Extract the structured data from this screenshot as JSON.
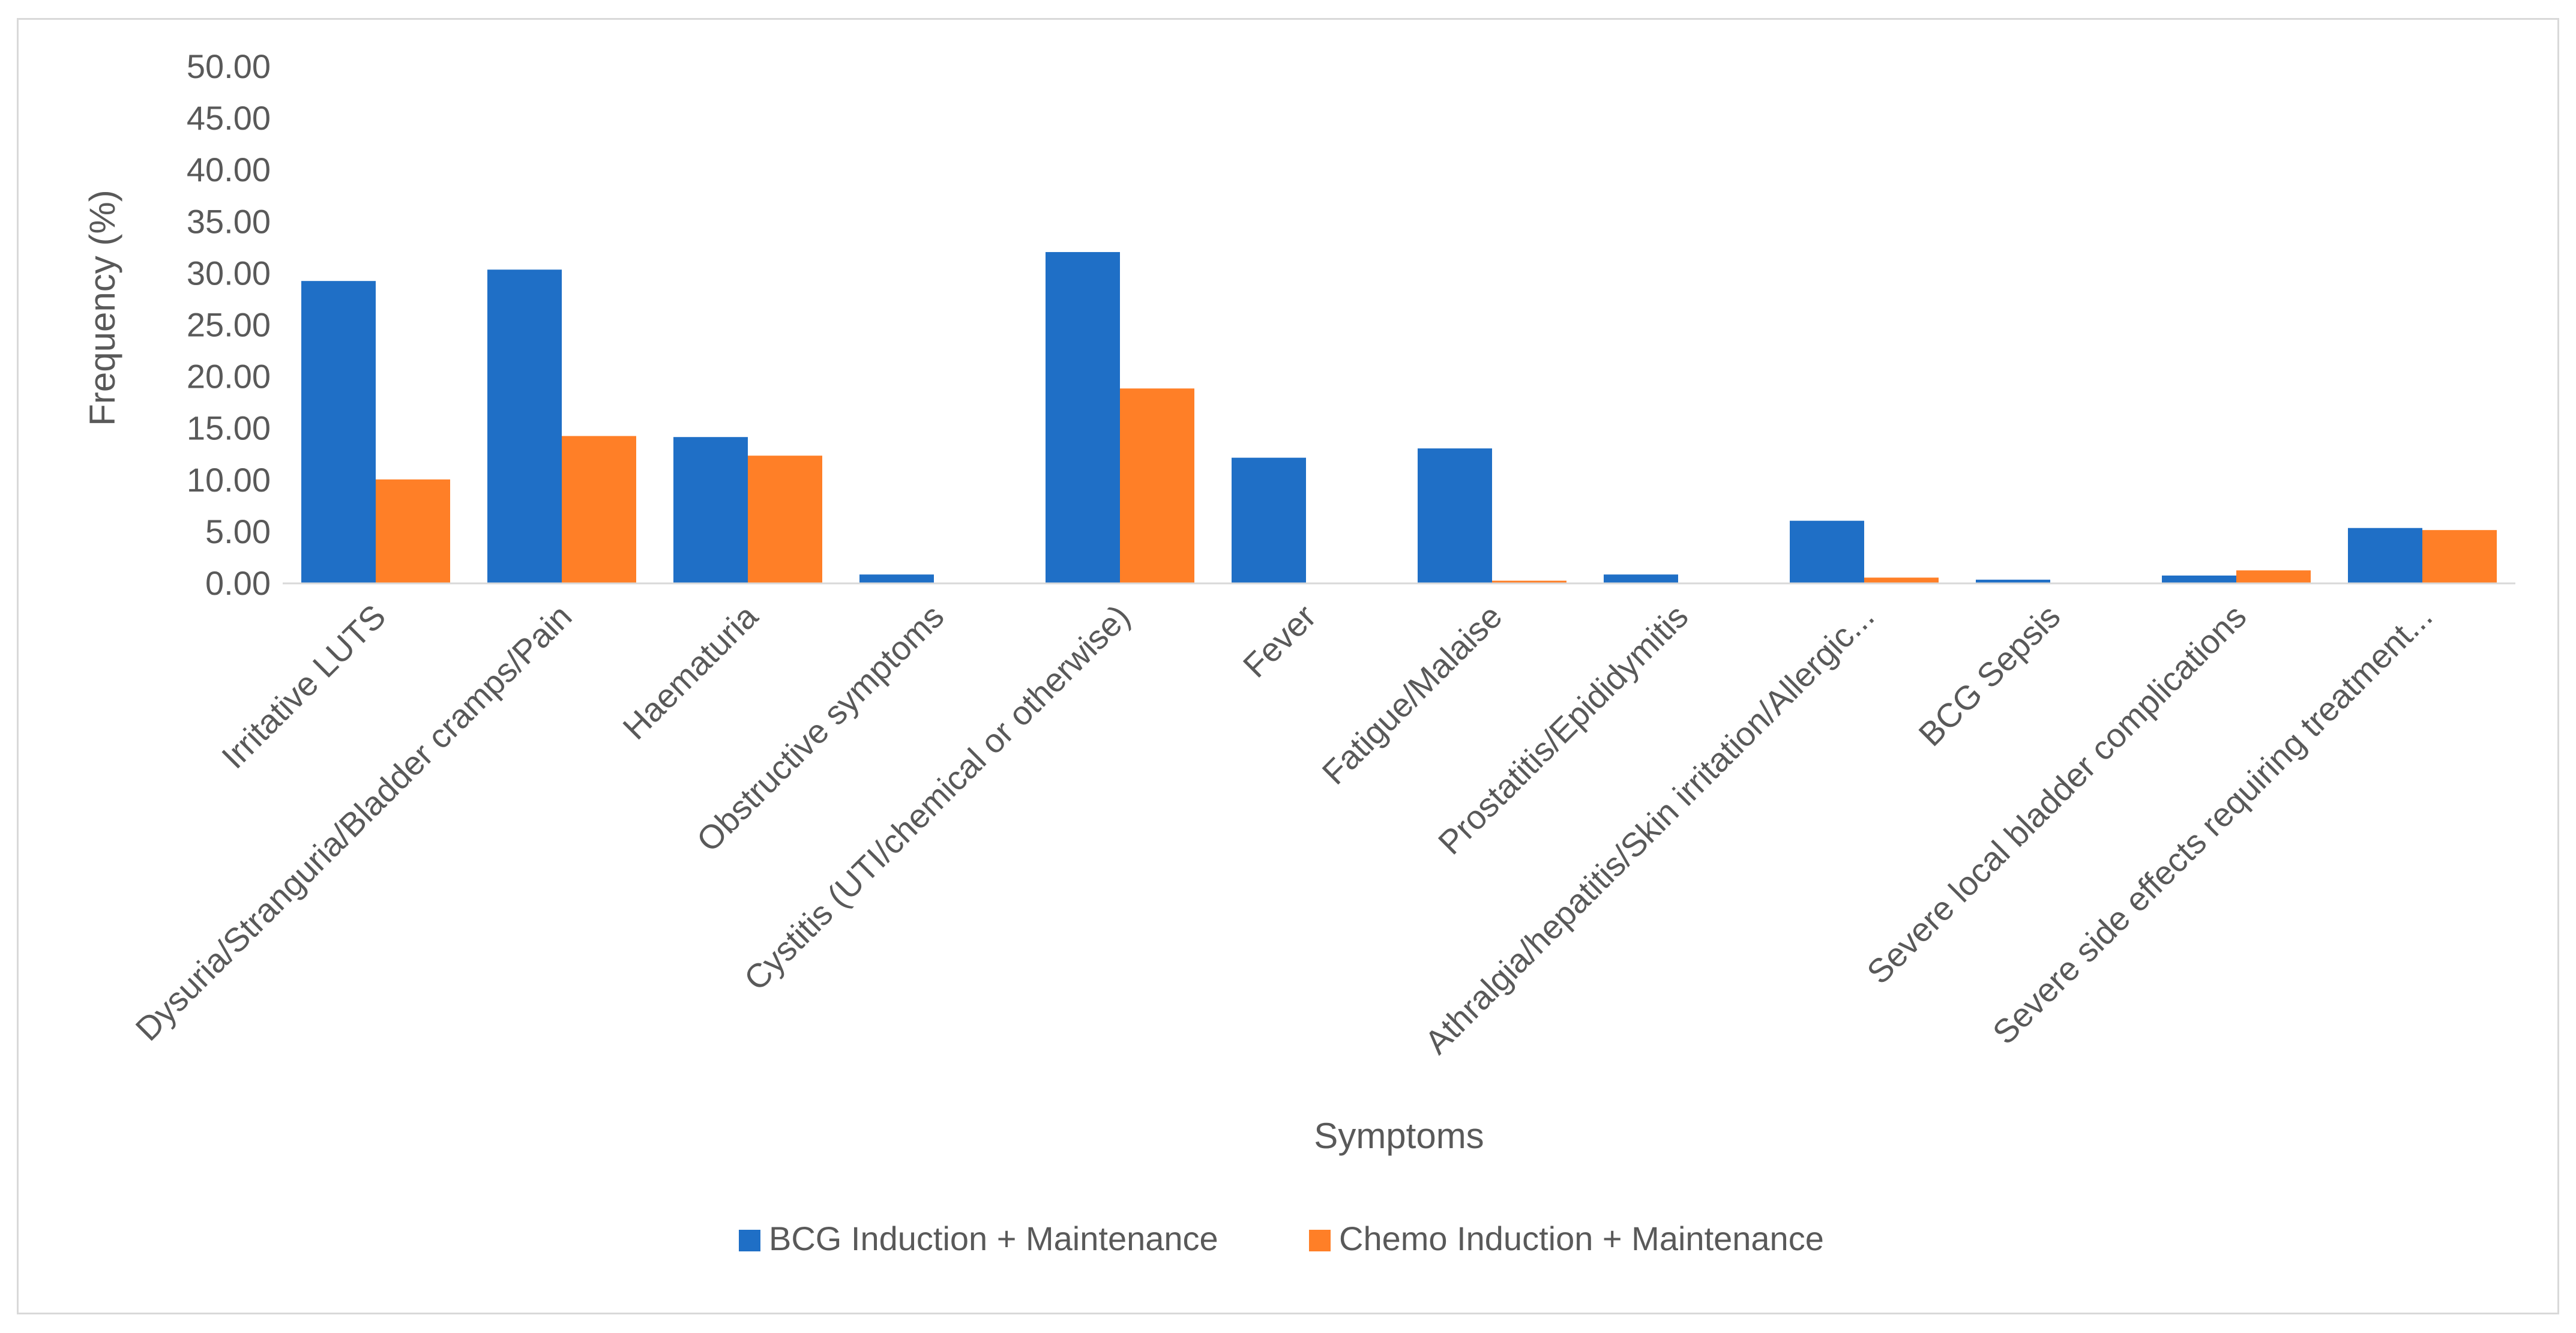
{
  "chart_data": {
    "type": "bar",
    "title": "",
    "xlabel": "Symptoms",
    "ylabel": "Frequency (%)",
    "ylim": [
      0,
      50
    ],
    "ytick_step": 5,
    "ytick_labels": [
      "0.00",
      "5.00",
      "10.00",
      "15.00",
      "20.00",
      "25.00",
      "30.00",
      "35.00",
      "40.00",
      "45.00",
      "50.00"
    ],
    "grid": false,
    "legend_position": "bottom",
    "categories": [
      "Irritative LUTS",
      "Dysuria/Stranguria/Bladder cramps/Pain",
      "Haematuria",
      "Obstructive symptoms",
      "Cystitis (UTI/chemical or otherwise)",
      "Fever",
      "Fatigue/Malaise",
      "Prostatitis/Epididymitis",
      "Athralgia/hepatitis/Skin irritation/Allergic...",
      "BCG Sepsis",
      "Severe local bladder complications",
      "Severe side effects requiring treatment..."
    ],
    "series": [
      {
        "name": "BCG Induction + Maintenance",
        "color": "#1f6fc6",
        "values": [
          29.2,
          30.3,
          14.1,
          0.8,
          32.0,
          12.1,
          13.0,
          0.8,
          6.0,
          0.3,
          0.7,
          5.3
        ]
      },
      {
        "name": "Chemo Induction + Maintenance",
        "color": "#ff7f27",
        "values": [
          10.0,
          14.2,
          12.3,
          0.0,
          18.8,
          0.0,
          0.2,
          0.0,
          0.5,
          0.0,
          1.2,
          5.1
        ]
      }
    ]
  }
}
